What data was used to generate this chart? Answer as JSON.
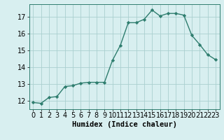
{
  "x": [
    0,
    1,
    2,
    3,
    4,
    5,
    6,
    7,
    8,
    9,
    10,
    11,
    12,
    13,
    14,
    15,
    16,
    17,
    18,
    19,
    20,
    21,
    22,
    23
  ],
  "y": [
    11.9,
    11.85,
    12.2,
    12.25,
    12.85,
    12.9,
    13.05,
    13.1,
    13.1,
    13.1,
    14.4,
    15.3,
    16.65,
    16.65,
    16.85,
    17.4,
    17.05,
    17.2,
    17.2,
    17.1,
    15.9,
    15.35,
    14.75,
    14.45
  ],
  "line_color": "#2e7d6e",
  "marker": "D",
  "marker_size": 2.2,
  "line_width": 1.0,
  "bg_color": "#d8eff0",
  "grid_color": "#aacfcf",
  "xlabel": "Humidex (Indice chaleur)",
  "xlabel_fontsize": 7.5,
  "tick_fontsize": 7,
  "xlim": [
    -0.5,
    23.5
  ],
  "ylim": [
    11.5,
    17.75
  ],
  "yticks": [
    12,
    13,
    14,
    15,
    16,
    17
  ],
  "xticks": [
    0,
    1,
    2,
    3,
    4,
    5,
    6,
    7,
    8,
    9,
    10,
    11,
    12,
    13,
    14,
    15,
    16,
    17,
    18,
    19,
    20,
    21,
    22,
    23
  ]
}
